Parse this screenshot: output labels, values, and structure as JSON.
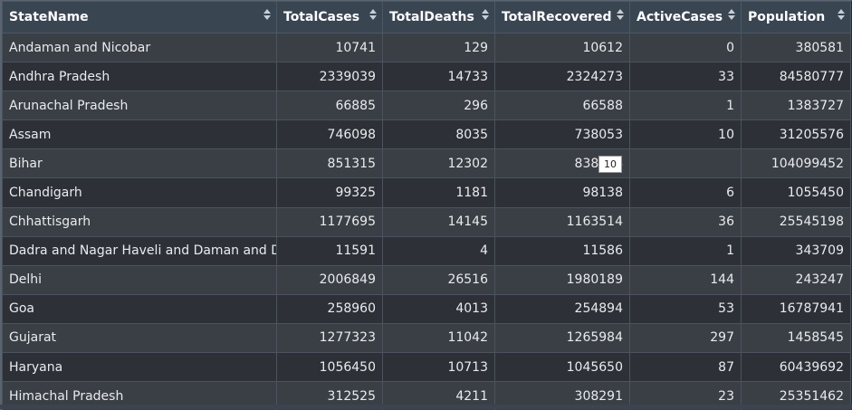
{
  "columns": [
    {
      "label": "StateName"
    },
    {
      "label": "TotalCases"
    },
    {
      "label": "TotalDeaths"
    },
    {
      "label": "TotalRecovered"
    },
    {
      "label": "ActiveCases"
    },
    {
      "label": "Population"
    }
  ],
  "rows": [
    [
      "Andaman and Nicobar",
      "10741",
      "129",
      "10612",
      "0",
      "380581"
    ],
    [
      "Andhra Pradesh",
      "2339039",
      "14733",
      "2324273",
      "33",
      "84580777"
    ],
    [
      "Arunachal Pradesh",
      "66885",
      "296",
      "66588",
      "1",
      "1383727"
    ],
    [
      "Assam",
      "746098",
      "8035",
      "738053",
      "10",
      "31205576"
    ],
    [
      "Bihar",
      "851315",
      "12302",
      "838984",
      "",
      "104099452"
    ],
    [
      "Chandigarh",
      "99325",
      "1181",
      "98138",
      "6",
      "1055450"
    ],
    [
      "Chhattisgarh",
      "1177695",
      "14145",
      "1163514",
      "36",
      "25545198"
    ],
    [
      "Dadra and Nagar Haveli and Daman and Diu",
      "11591",
      "4",
      "11586",
      "1",
      "343709"
    ],
    [
      "Delhi",
      "2006849",
      "26516",
      "1980189",
      "144",
      "243247"
    ],
    [
      "Goa",
      "258960",
      "4013",
      "254894",
      "53",
      "16787941"
    ],
    [
      "Gujarat",
      "1277323",
      "11042",
      "1265984",
      "297",
      "1458545"
    ],
    [
      "Haryana",
      "1056450",
      "10713",
      "1045650",
      "87",
      "60439692"
    ],
    [
      "Himachal Pradesh",
      "312525",
      "4211",
      "308291",
      "23",
      "25351462"
    ]
  ],
  "tooltip": {
    "text": "10"
  }
}
